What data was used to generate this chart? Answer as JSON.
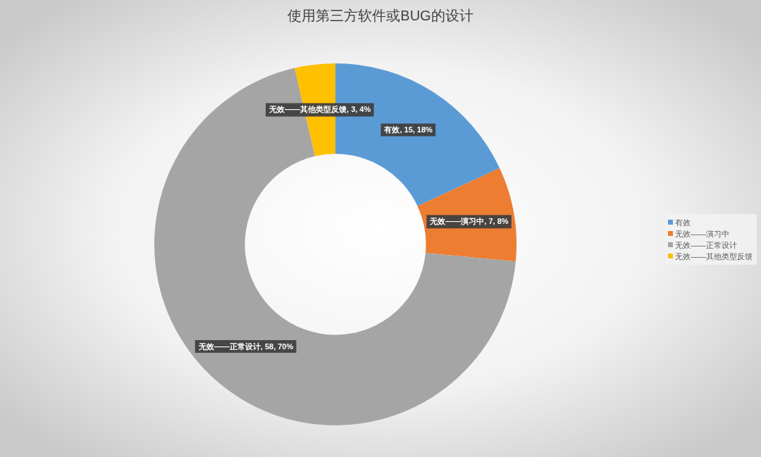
{
  "chart_data": {
    "type": "donut",
    "title": "使用第三方软件或BUG的设计",
    "categories": [
      "有效",
      "无效——演习中",
      "无效——正常设计",
      "无效——其他类型反馈"
    ],
    "values": [
      15,
      7,
      58,
      3
    ],
    "colors": [
      "#5b9bd5",
      "#ed7d31",
      "#a5a5a5",
      "#ffc000"
    ],
    "value_labels": [
      "有效, 15, 18%",
      "无效——演习中, 7, 8%",
      "无效——正常设计, 58, 70%",
      "无效——其他类型反馈, 3, 4%"
    ],
    "legend": "right"
  }
}
